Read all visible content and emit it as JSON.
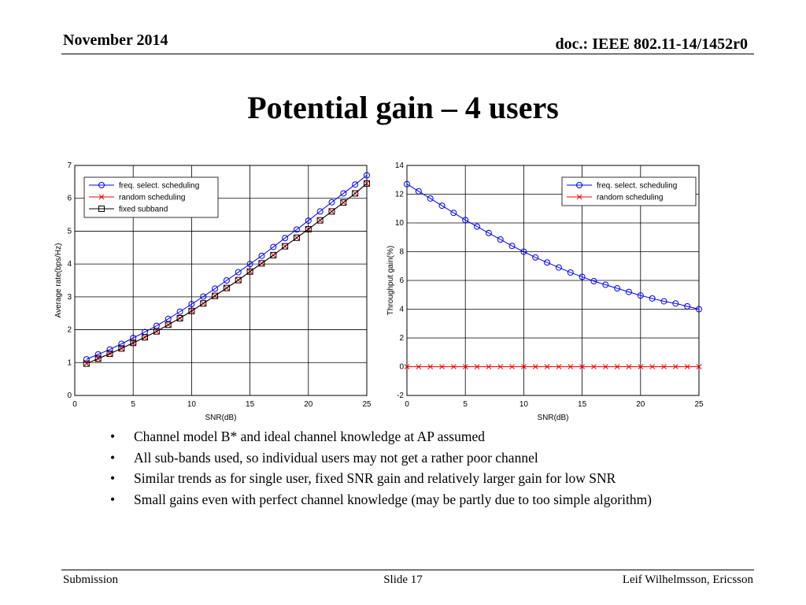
{
  "header": {
    "date": "November 2014",
    "doc": "doc.: IEEE 802.11-14/1452r0"
  },
  "title": "Potential gain – 4 users",
  "chart_data": [
    {
      "type": "line",
      "xlabel": "SNR(dB)",
      "ylabel": "Average rate(bps/Hz)",
      "xlim": [
        0,
        25
      ],
      "ylim": [
        0,
        7
      ],
      "xticks": [
        0,
        5,
        10,
        15,
        20,
        25
      ],
      "yticks": [
        0,
        1,
        2,
        3,
        4,
        5,
        6,
        7
      ],
      "grid": true,
      "legend_position": "top-left",
      "x": [
        1,
        2,
        3,
        4,
        5,
        6,
        7,
        8,
        9,
        10,
        11,
        12,
        13,
        14,
        15,
        16,
        17,
        18,
        19,
        20,
        21,
        22,
        23,
        24,
        25
      ],
      "series": [
        {
          "name": "freq. select. scheduling",
          "color": "#0000ff",
          "marker": "circle",
          "values": [
            1.1,
            1.25,
            1.4,
            1.57,
            1.75,
            1.93,
            2.12,
            2.33,
            2.55,
            2.78,
            3.01,
            3.25,
            3.5,
            3.75,
            4.0,
            4.25,
            4.52,
            4.79,
            5.05,
            5.32,
            5.6,
            5.88,
            6.15,
            6.42,
            6.7
          ]
        },
        {
          "name": "random scheduling",
          "color": "#ff0000",
          "marker": "x",
          "values": [
            0.97,
            1.12,
            1.27,
            1.43,
            1.6,
            1.77,
            1.95,
            2.15,
            2.35,
            2.57,
            2.8,
            3.03,
            3.27,
            3.51,
            3.77,
            4.02,
            4.27,
            4.54,
            4.8,
            5.06,
            5.33,
            5.6,
            5.87,
            6.15,
            6.45
          ]
        },
        {
          "name": "fixed subband",
          "color": "#000000",
          "marker": "square",
          "values": [
            0.97,
            1.12,
            1.27,
            1.43,
            1.6,
            1.77,
            1.95,
            2.15,
            2.35,
            2.57,
            2.8,
            3.03,
            3.27,
            3.51,
            3.77,
            4.02,
            4.27,
            4.54,
            4.8,
            5.06,
            5.33,
            5.6,
            5.87,
            6.15,
            6.45
          ]
        }
      ]
    },
    {
      "type": "line",
      "xlabel": "SNR(dB)",
      "ylabel": "Throughput gain(%)",
      "xlim": [
        0,
        25
      ],
      "ylim": [
        -2,
        14
      ],
      "xticks": [
        0,
        5,
        10,
        15,
        20,
        25
      ],
      "yticks": [
        -2,
        0,
        2,
        4,
        6,
        8,
        10,
        12,
        14
      ],
      "grid": true,
      "legend_position": "top-right",
      "x": [
        0,
        1,
        2,
        3,
        4,
        5,
        6,
        7,
        8,
        9,
        10,
        11,
        12,
        13,
        14,
        15,
        16,
        17,
        18,
        19,
        20,
        21,
        22,
        23,
        24,
        25
      ],
      "series": [
        {
          "name": "freq. select. scheduling",
          "color": "#0000ff",
          "marker": "circle",
          "values": [
            12.7,
            12.2,
            11.7,
            11.2,
            10.7,
            10.2,
            9.75,
            9.3,
            8.85,
            8.4,
            8.0,
            7.6,
            7.25,
            6.9,
            6.55,
            6.25,
            5.95,
            5.7,
            5.45,
            5.2,
            4.95,
            4.75,
            4.55,
            4.4,
            4.2,
            4.0
          ]
        },
        {
          "name": "random scheduling",
          "color": "#ff0000",
          "marker": "x",
          "values": [
            0,
            0,
            0,
            0,
            0,
            0,
            0,
            0,
            0,
            0,
            0,
            0,
            0,
            0,
            0,
            0,
            0,
            0,
            0,
            0,
            0,
            0,
            0,
            0,
            0,
            0
          ]
        }
      ]
    }
  ],
  "bullets": [
    "Channel model B* and ideal channel knowledge at AP assumed",
    "All sub-bands used, so individual users may not get a rather poor channel",
    "Similar trends as for single user, fixed SNR gain and relatively larger gain for low SNR",
    "Small gains even with perfect channel knowledge (may be partly due to too simple algorithm)"
  ],
  "bullet_symbol": "•",
  "footer": {
    "left": "Submission",
    "center": "Slide 17",
    "right": "Leif Wilhelmsson, Ericsson"
  }
}
